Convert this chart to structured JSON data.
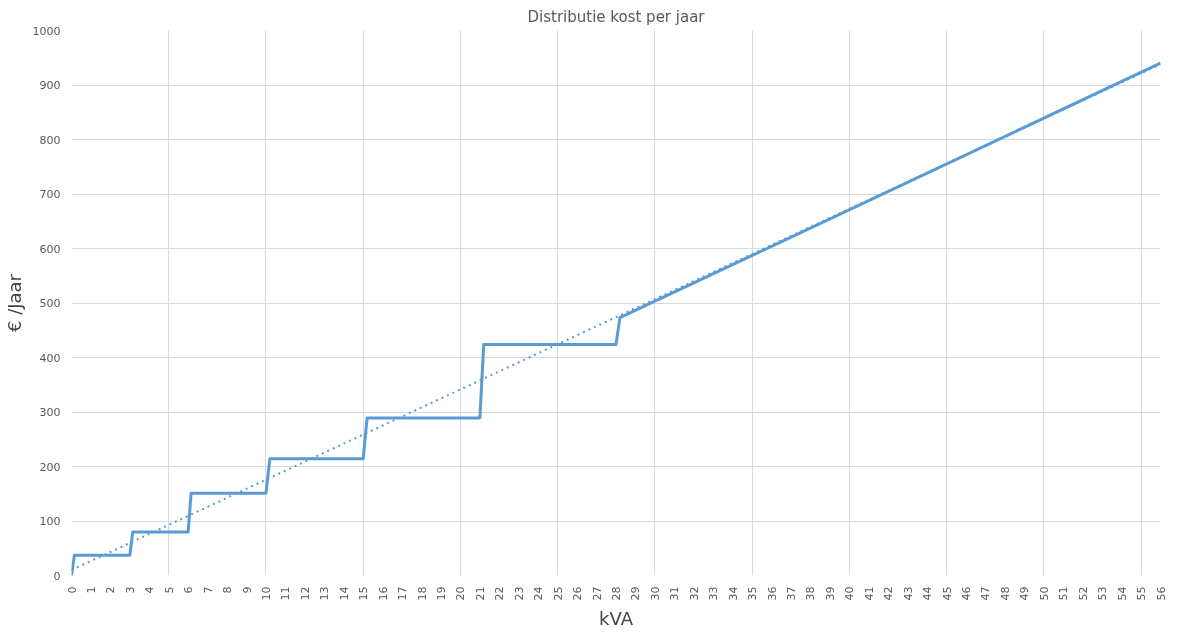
{
  "chart_data": {
    "type": "line",
    "title": "Distributie kost per jaar",
    "xlabel": "kVA",
    "ylabel": "€ /Jaar",
    "xlim": [
      0,
      56
    ],
    "xticks": [
      0,
      1,
      2,
      3,
      4,
      5,
      6,
      7,
      8,
      9,
      10,
      11,
      12,
      13,
      14,
      15,
      16,
      17,
      18,
      19,
      20,
      21,
      22,
      23,
      24,
      25,
      26,
      27,
      28,
      29,
      30,
      31,
      32,
      33,
      34,
      35,
      36,
      37,
      38,
      39,
      40,
      41,
      42,
      43,
      44,
      45,
      46,
      47,
      48,
      49,
      50,
      51,
      52,
      53,
      54,
      55,
      56
    ],
    "ylim": [
      0,
      1000
    ],
    "yticks": [
      0,
      100,
      200,
      300,
      400,
      500,
      600,
      700,
      800,
      900,
      1000
    ],
    "grid": true,
    "marker": "none",
    "series": [
      {
        "color": "#5b9bd5",
        "line_style": "solid",
        "x": [
          0,
          0.15,
          3,
          3.15,
          6,
          6.15,
          10,
          10.2,
          15,
          15.2,
          21,
          21.2,
          28,
          28.2,
          56
        ],
        "values": [
          0,
          37,
          37,
          80,
          80,
          151,
          151,
          214,
          214,
          289,
          289,
          424,
          424,
          473,
          940
        ]
      },
      {
        "color": "#5b9bd5",
        "line_style": "dotted",
        "x": [
          0,
          56
        ],
        "values": [
          10,
          938
        ]
      }
    ]
  }
}
